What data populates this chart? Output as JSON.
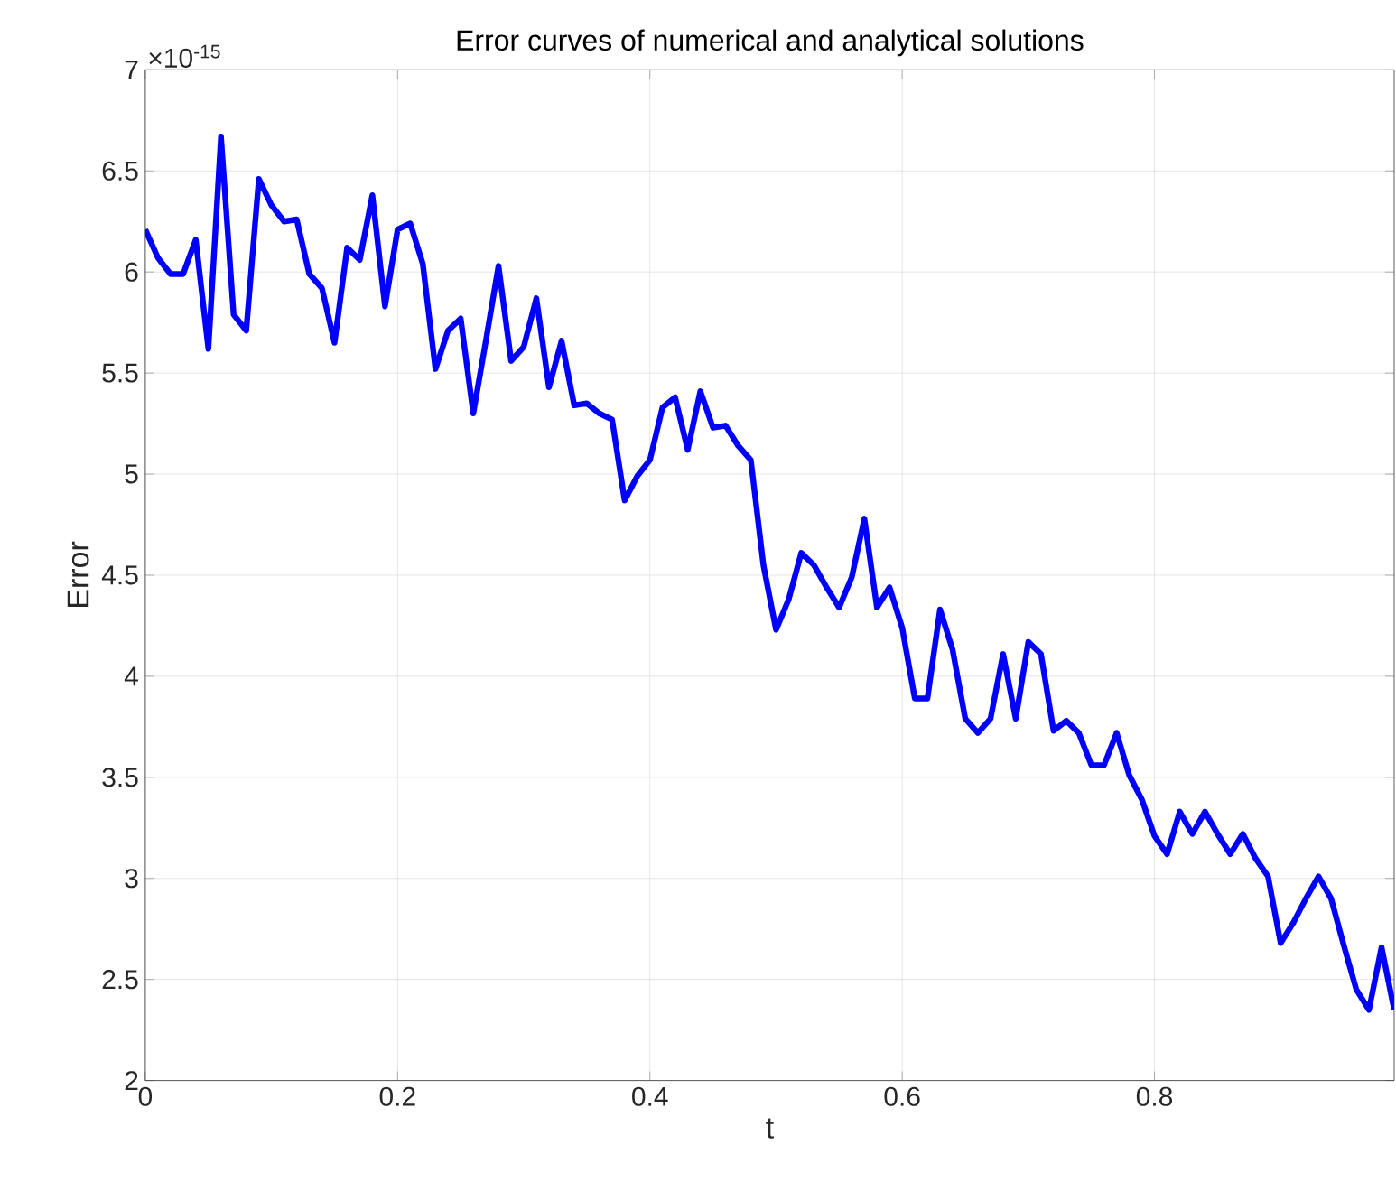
{
  "chart_data": {
    "type": "line",
    "title": "Error curves of numerical and analytical solutions",
    "xlabel": "t",
    "ylabel": "Error",
    "annotations": [
      "×10$^{-15}$"
    ],
    "x": [
      0,
      0.01,
      0.02,
      0.03,
      0.04,
      0.05,
      0.06,
      0.07,
      0.08,
      0.09,
      0.1,
      0.11,
      0.12,
      0.13,
      0.14,
      0.15,
      0.16,
      0.17,
      0.18,
      0.19,
      0.2,
      0.21,
      0.22,
      0.23,
      0.24,
      0.25,
      0.26,
      0.27,
      0.28,
      0.29,
      0.3,
      0.31,
      0.32,
      0.33,
      0.34,
      0.35,
      0.36,
      0.37,
      0.38,
      0.39,
      0.4,
      0.41,
      0.42,
      0.43,
      0.44,
      0.45,
      0.46,
      0.47,
      0.48,
      0.49,
      0.5,
      0.51,
      0.52,
      0.53,
      0.54,
      0.55,
      0.56,
      0.57,
      0.58,
      0.59,
      0.6,
      0.61,
      0.62,
      0.63,
      0.64,
      0.65,
      0.66,
      0.67,
      0.68,
      0.69,
      0.7,
      0.71,
      0.72,
      0.73,
      0.74,
      0.75,
      0.76,
      0.77,
      0.78,
      0.79,
      0.8,
      0.81,
      0.82,
      0.83,
      0.84,
      0.85,
      0.86,
      0.87,
      0.88,
      0.89,
      0.9,
      0.91,
      0.92,
      0.93,
      0.94,
      0.95,
      0.96,
      0.97,
      0.98,
      0.99
    ],
    "series": [
      {
        "color": "#0000ff",
        "values": [
          6.21,
          6.07,
          5.99,
          5.99,
          6.16,
          5.62,
          6.67,
          5.79,
          5.71,
          6.46,
          6.33,
          6.25,
          6.26,
          5.99,
          5.92,
          5.65,
          6.12,
          6.06,
          6.38,
          5.83,
          6.21,
          6.24,
          6.04,
          5.52,
          5.71,
          5.77,
          5.3,
          5.66,
          6.03,
          5.56,
          5.63,
          5.87,
          5.43,
          5.66,
          5.34,
          5.35,
          5.3,
          5.27,
          4.87,
          4.99,
          5.07,
          5.33,
          5.38,
          5.12,
          5.41,
          5.23,
          5.24,
          5.14,
          5.07,
          4.55,
          4.23,
          4.38,
          4.61,
          4.55,
          4.44,
          4.34,
          4.49,
          4.78,
          4.34,
          4.44,
          4.24,
          3.89,
          3.89,
          4.33,
          4.13,
          3.79,
          3.72,
          3.79,
          4.11,
          3.79,
          4.17,
          4.11,
          3.73,
          3.78,
          3.72,
          3.56,
          3.56,
          3.72,
          3.51,
          3.39,
          3.21,
          3.12,
          3.33,
          3.22,
          3.33,
          3.22,
          3.12,
          3.22,
          3.1,
          3.01,
          2.68,
          2.78,
          2.9,
          3.01,
          2.9,
          2.67,
          2.45,
          2.35,
          2.66,
          2.35
        ]
      }
    ],
    "xlim": [
      0,
      0.99
    ],
    "ylim": [
      2,
      7
    ],
    "xticks": [
      0,
      0.2,
      0.4,
      0.6,
      0.8
    ],
    "yticks": [
      2,
      2.5,
      3,
      3.5,
      4,
      4.5,
      5,
      5.5,
      6,
      6.5,
      7
    ],
    "grid": true,
    "marker": "none",
    "line_style": "solid"
  }
}
